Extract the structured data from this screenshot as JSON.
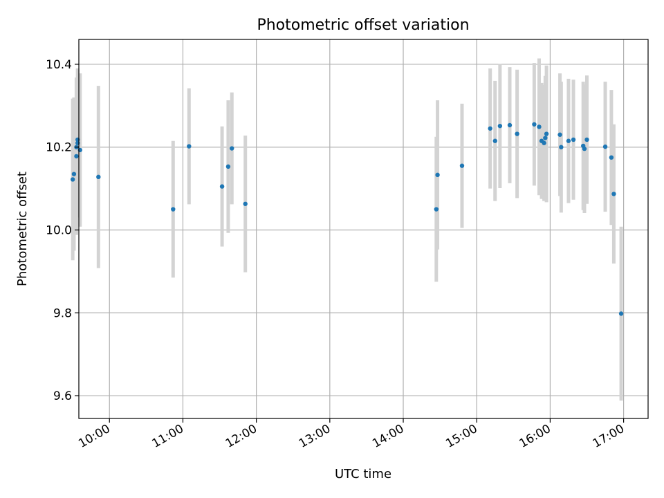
{
  "chart_data": {
    "type": "scatter",
    "title": "Photometric offset variation",
    "xlabel": "UTC time",
    "ylabel": "Photometric offset",
    "xlim": [
      "09:35",
      "17:20"
    ],
    "ylim": [
      9.545,
      10.46
    ],
    "xticks": [
      "10:00",
      "11:00",
      "12:00",
      "13:00",
      "14:00",
      "15:00",
      "16:00",
      "17:00"
    ],
    "yticks": [
      "9.6",
      "9.8",
      "10.0",
      "10.2",
      "10.4"
    ],
    "grid": true,
    "colors": {
      "marker": "#1f77b4",
      "errorbar": "#d3d3d3",
      "grid": "#b0b0b0"
    },
    "points": [
      {
        "x": "09:30",
        "y": 10.122,
        "err": 0.195
      },
      {
        "x": "09:31",
        "y": 10.135,
        "err": 0.185
      },
      {
        "x": "09:33",
        "y": 10.178,
        "err": 0.19
      },
      {
        "x": "09:33",
        "y": 10.2,
        "err": 0.165
      },
      {
        "x": "09:34",
        "y": 10.21,
        "err": 0.18
      },
      {
        "x": "09:34",
        "y": 10.218,
        "err": 0.17
      },
      {
        "x": "09:36",
        "y": 10.193,
        "err": 0.185
      },
      {
        "x": "09:51",
        "y": 10.128,
        "err": 0.22
      },
      {
        "x": "10:52",
        "y": 10.05,
        "err": 0.165
      },
      {
        "x": "11:05",
        "y": 10.202,
        "err": 0.14
      },
      {
        "x": "11:32",
        "y": 10.105,
        "err": 0.145
      },
      {
        "x": "11:37",
        "y": 10.153,
        "err": 0.16
      },
      {
        "x": "11:40",
        "y": 10.197,
        "err": 0.135
      },
      {
        "x": "11:51",
        "y": 10.063,
        "err": 0.165
      },
      {
        "x": "14:27",
        "y": 10.05,
        "err": 0.175
      },
      {
        "x": "14:28",
        "y": 10.133,
        "err": 0.18
      },
      {
        "x": "14:48",
        "y": 10.155,
        "err": 0.15
      },
      {
        "x": "15:11",
        "y": 10.245,
        "err": 0.145
      },
      {
        "x": "15:15",
        "y": 10.215,
        "err": 0.145
      },
      {
        "x": "15:19",
        "y": 10.251,
        "err": 0.15
      },
      {
        "x": "15:27",
        "y": 10.253,
        "err": 0.14
      },
      {
        "x": "15:33",
        "y": 10.232,
        "err": 0.155
      },
      {
        "x": "15:47",
        "y": 10.255,
        "err": 0.148
      },
      {
        "x": "15:51",
        "y": 10.249,
        "err": 0.165
      },
      {
        "x": "15:53",
        "y": 10.215,
        "err": 0.14
      },
      {
        "x": "15:55",
        "y": 10.21,
        "err": 0.14
      },
      {
        "x": "15:56",
        "y": 10.222,
        "err": 0.15
      },
      {
        "x": "15:57",
        "y": 10.232,
        "err": 0.165
      },
      {
        "x": "16:08",
        "y": 10.23,
        "err": 0.148
      },
      {
        "x": "16:09",
        "y": 10.2,
        "err": 0.158
      },
      {
        "x": "16:15",
        "y": 10.215,
        "err": 0.15
      },
      {
        "x": "16:19",
        "y": 10.218,
        "err": 0.145
      },
      {
        "x": "16:27",
        "y": 10.203,
        "err": 0.155
      },
      {
        "x": "16:28",
        "y": 10.196,
        "err": 0.155
      },
      {
        "x": "16:30",
        "y": 10.218,
        "err": 0.155
      },
      {
        "x": "16:45",
        "y": 10.201,
        "err": 0.157
      },
      {
        "x": "16:50",
        "y": 10.175,
        "err": 0.163
      },
      {
        "x": "16:52",
        "y": 10.087,
        "err": 0.168
      },
      {
        "x": "16:58",
        "y": 9.798,
        "err": 0.21
      }
    ]
  }
}
